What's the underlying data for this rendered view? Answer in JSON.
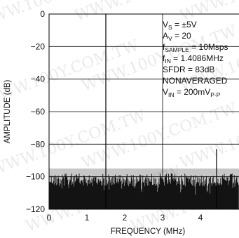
{
  "chart_data": {
    "type": "line",
    "title": "",
    "xlabel": "FREQUENCY (MHz)",
    "ylabel": "AMPLITUDE (dB)",
    "xlim": [
      0,
      5
    ],
    "ylim": [
      -120,
      0
    ],
    "x_ticks": [
      0,
      1,
      2,
      3,
      4
    ],
    "y_ticks": [
      0,
      -20,
      -40,
      -60,
      -80,
      -100,
      -120
    ],
    "grid": true,
    "series": [
      {
        "description": "FFT noise floor with spurs",
        "noise_floor_top": -97,
        "noise_floor_bottom": -120,
        "spurs": [
          {
            "x": 1.4086,
            "y": 0
          },
          {
            "x": 4.45,
            "y": -83
          }
        ]
      }
    ],
    "annotations": [
      {
        "main": "V",
        "sub": "S",
        "rest": " = ±5V"
      },
      {
        "main": "A",
        "sub": "V",
        "rest": " = 20"
      },
      {
        "main": "f",
        "sub": "SAMPLE",
        "rest": " = 10Msps"
      },
      {
        "main": "f",
        "sub": "IN",
        "rest": " = 1.4086MHz"
      },
      {
        "main": "SFDR = 83dB",
        "sub": "",
        "rest": ""
      },
      {
        "main": "NONAVERAGED",
        "sub": "",
        "rest": ""
      },
      {
        "main": "V",
        "sub": "IN",
        "rest": " = 200mV",
        "sub2": "P-P"
      }
    ],
    "watermark": "WWW.100Y.COM.TW"
  }
}
